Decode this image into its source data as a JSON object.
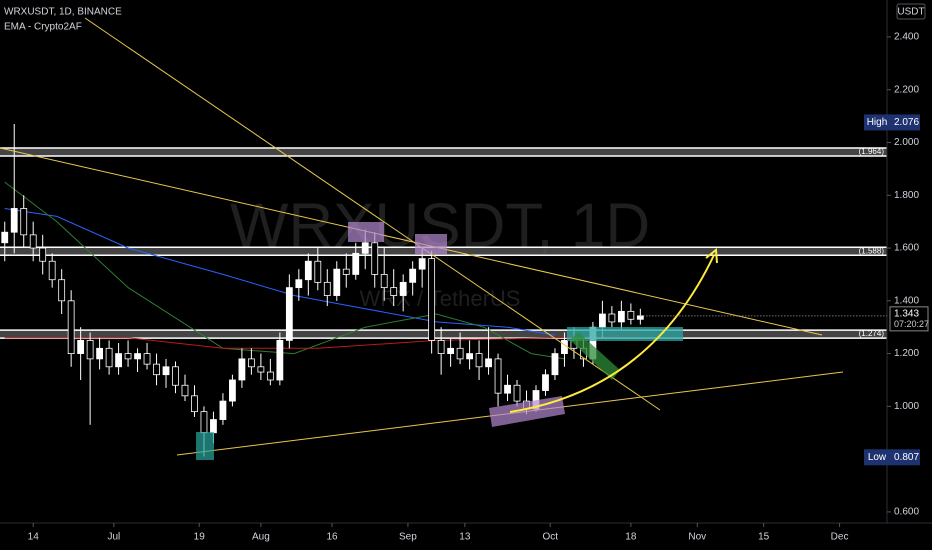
{
  "chart_data": {
    "type": "candlestick",
    "title": "WRXUSDT, 1D, BINANCE",
    "subtitle": "EMA - Crypto2AF",
    "currency": "USDT",
    "watermark": "WRXUSDT, 1D",
    "watermark_subtitle": "WRX / TetherUS",
    "up_color": "#ffffff",
    "down_color": "#000000",
    "x": [
      -6,
      -4,
      -2,
      0,
      2,
      4,
      6,
      8,
      10,
      12,
      14,
      16,
      18,
      20,
      22,
      24,
      26,
      28,
      30,
      32,
      34,
      36,
      38,
      40,
      42,
      44,
      46,
      48,
      50,
      52,
      54,
      56,
      58,
      60,
      62,
      64,
      66,
      68,
      70,
      72,
      74,
      76,
      78,
      80,
      82,
      84,
      86,
      88,
      90,
      92,
      94,
      96,
      98,
      100,
      102,
      104,
      106,
      108,
      110,
      112,
      114,
      116,
      118,
      120,
      122,
      124,
      126,
      128
    ],
    "ohlc": [
      [
        1.62,
        1.7,
        1.55,
        1.66
      ],
      [
        1.66,
        2.07,
        1.58,
        1.75
      ],
      [
        1.75,
        1.8,
        1.6,
        1.65
      ],
      [
        1.65,
        1.7,
        1.55,
        1.6
      ],
      [
        1.6,
        1.65,
        1.5,
        1.55
      ],
      [
        1.55,
        1.58,
        1.45,
        1.48
      ],
      [
        1.48,
        1.52,
        1.35,
        1.4
      ],
      [
        1.4,
        1.44,
        1.15,
        1.2
      ],
      [
        1.2,
        1.3,
        1.1,
        1.25
      ],
      [
        1.25,
        1.28,
        0.93,
        1.18
      ],
      [
        1.18,
        1.26,
        1.14,
        1.22
      ],
      [
        1.22,
        1.25,
        1.12,
        1.15
      ],
      [
        1.15,
        1.24,
        1.12,
        1.2
      ],
      [
        1.2,
        1.25,
        1.15,
        1.18
      ],
      [
        1.18,
        1.22,
        1.13,
        1.2
      ],
      [
        1.2,
        1.24,
        1.14,
        1.16
      ],
      [
        1.16,
        1.2,
        1.08,
        1.12
      ],
      [
        1.12,
        1.18,
        1.07,
        1.15
      ],
      [
        1.15,
        1.17,
        1.05,
        1.08
      ],
      [
        1.08,
        1.12,
        1.02,
        1.04
      ],
      [
        1.04,
        1.08,
        0.96,
        0.98
      ],
      [
        0.98,
        1.0,
        0.81,
        0.9
      ],
      [
        0.9,
        0.98,
        0.86,
        0.95
      ],
      [
        0.95,
        1.05,
        0.93,
        1.02
      ],
      [
        1.02,
        1.12,
        1.0,
        1.1
      ],
      [
        1.1,
        1.22,
        1.07,
        1.18
      ],
      [
        1.18,
        1.22,
        1.12,
        1.15
      ],
      [
        1.15,
        1.2,
        1.1,
        1.13
      ],
      [
        1.13,
        1.18,
        1.08,
        1.1
      ],
      [
        1.1,
        1.28,
        1.08,
        1.25
      ],
      [
        1.25,
        1.5,
        1.22,
        1.45
      ],
      [
        1.45,
        1.52,
        1.4,
        1.48
      ],
      [
        1.48,
        1.58,
        1.42,
        1.55
      ],
      [
        1.55,
        1.6,
        1.44,
        1.47
      ],
      [
        1.47,
        1.52,
        1.38,
        1.42
      ],
      [
        1.42,
        1.55,
        1.4,
        1.52
      ],
      [
        1.52,
        1.58,
        1.45,
        1.5
      ],
      [
        1.5,
        1.62,
        1.48,
        1.58
      ],
      [
        1.58,
        1.67,
        1.52,
        1.62
      ],
      [
        1.62,
        1.66,
        1.45,
        1.5
      ],
      [
        1.5,
        1.6,
        1.4,
        1.45
      ],
      [
        1.45,
        1.52,
        1.38,
        1.42
      ],
      [
        1.42,
        1.5,
        1.36,
        1.47
      ],
      [
        1.47,
        1.55,
        1.42,
        1.52
      ],
      [
        1.52,
        1.6,
        1.45,
        1.56
      ],
      [
        1.56,
        1.59,
        1.2,
        1.25
      ],
      [
        1.25,
        1.3,
        1.12,
        1.2
      ],
      [
        1.2,
        1.26,
        1.15,
        1.22
      ],
      [
        1.22,
        1.28,
        1.16,
        1.18
      ],
      [
        1.18,
        1.25,
        1.14,
        1.2
      ],
      [
        1.2,
        1.25,
        1.1,
        1.15
      ],
      [
        1.15,
        1.3,
        1.12,
        1.18
      ],
      [
        1.18,
        1.2,
        1.0,
        1.05
      ],
      [
        1.05,
        1.12,
        1.02,
        1.08
      ],
      [
        1.08,
        1.1,
        1.0,
        1.02
      ],
      [
        1.02,
        1.06,
        0.97,
        0.99
      ],
      [
        0.99,
        1.08,
        0.98,
        1.06
      ],
      [
        1.06,
        1.14,
        1.04,
        1.12
      ],
      [
        1.12,
        1.22,
        1.1,
        1.2
      ],
      [
        1.2,
        1.28,
        1.15,
        1.25
      ],
      [
        1.25,
        1.3,
        1.18,
        1.22
      ],
      [
        1.22,
        1.26,
        1.15,
        1.18
      ],
      [
        1.18,
        1.32,
        1.16,
        1.3
      ],
      [
        1.3,
        1.4,
        1.26,
        1.35
      ],
      [
        1.35,
        1.38,
        1.3,
        1.32
      ],
      [
        1.32,
        1.4,
        1.29,
        1.36
      ],
      [
        1.36,
        1.39,
        1.31,
        1.33
      ],
      [
        1.33,
        1.37,
        1.31,
        1.343
      ]
    ],
    "ema_series": [
      {
        "color": "#2962ff",
        "x": [
          -6,
          5,
          20,
          40,
          55,
          70,
          85,
          100,
          110
        ],
        "values": [
          1.75,
          1.72,
          1.6,
          1.5,
          1.42,
          1.37,
          1.32,
          1.3,
          1.27
        ]
      },
      {
        "color": "#2e7d32",
        "x": [
          -6,
          5,
          20,
          40,
          55,
          70,
          85,
          95,
          105,
          112
        ],
        "values": [
          1.85,
          1.7,
          1.45,
          1.22,
          1.2,
          1.3,
          1.35,
          1.3,
          1.2,
          1.18
        ]
      },
      {
        "color": "#b71c1c",
        "x": [
          -6,
          20,
          40,
          60,
          85,
          110,
          128
        ],
        "values": [
          1.26,
          1.26,
          1.22,
          1.22,
          1.25,
          1.26,
          1.27
        ]
      }
    ],
    "levels": [
      {
        "value": 1.964,
        "label": "(1.964)"
      },
      {
        "value": 1.588,
        "label": "(1.588)"
      },
      {
        "value": 1.274,
        "label": "(1.274)"
      }
    ],
    "high": {
      "label": "High",
      "value": 2.076
    },
    "low": {
      "label": "Low",
      "value": 0.807
    },
    "last_price": 1.343,
    "countdown": "07:20:27",
    "xlim": [
      -7,
      180
    ],
    "ylim": [
      0.558,
      2.54
    ],
    "xticks": [
      {
        "value": 0,
        "label": "14"
      },
      {
        "value": 17,
        "label": "Jul"
      },
      {
        "value": 35,
        "label": "19"
      },
      {
        "value": 48,
        "label": "Aug"
      },
      {
        "value": 63,
        "label": "16"
      },
      {
        "value": 79,
        "label": "Sep"
      },
      {
        "value": 91,
        "label": "13"
      },
      {
        "value": 109,
        "label": "Oct"
      },
      {
        "value": 126,
        "label": "18"
      },
      {
        "value": 140,
        "label": "Nov"
      },
      {
        "value": 154,
        "label": "15"
      },
      {
        "value": 170,
        "label": "Dec"
      }
    ],
    "yticks": [
      {
        "value": 0.6,
        "label": "0.600"
      },
      {
        "value": 1.0,
        "label": "1.000"
      },
      {
        "value": 1.2,
        "label": "1.200"
      },
      {
        "value": 1.4,
        "label": "1.400"
      },
      {
        "value": 1.6,
        "label": "1.600"
      },
      {
        "value": 1.8,
        "label": "1.800"
      },
      {
        "value": 2.0,
        "label": "2.000"
      },
      {
        "value": 2.2,
        "label": "2.200"
      },
      {
        "value": 2.4,
        "label": "2.400"
      }
    ]
  }
}
